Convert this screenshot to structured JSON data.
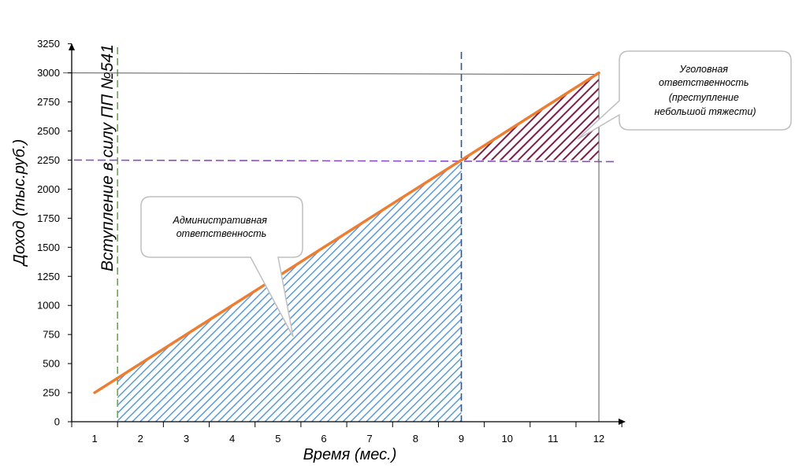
{
  "chart_data": {
    "type": "line",
    "xlabel": "Время (мес.)",
    "ylabel": "Доход (тыс.руб.)",
    "xlim": [
      0.5,
      13
    ],
    "ylim": [
      0,
      3250
    ],
    "x_ticks": [
      1,
      2,
      3,
      4,
      5,
      6,
      7,
      8,
      9,
      10,
      11,
      12
    ],
    "y_ticks": [
      0,
      250,
      500,
      750,
      1000,
      1250,
      1500,
      1750,
      2000,
      2250,
      2500,
      2750,
      3000,
      3250
    ],
    "series": [
      {
        "color": "#ED7D31",
        "x": [
          1,
          12
        ],
        "y": [
          250,
          3000
        ]
      }
    ],
    "reference_lines": {
      "start_month": 1.5,
      "start_label": "Вступление в силу ПП №541",
      "threshold_month": 9,
      "threshold_income": 2250,
      "max_income": 3000,
      "end_month": 12
    },
    "regions": [
      {
        "id": "admin",
        "x_from": 1.5,
        "x_to": 9,
        "color": "#5B9BD5"
      },
      {
        "id": "criminal",
        "x_from": 9,
        "x_to": 12,
        "color": "#7B1F4A"
      }
    ],
    "annotations": {
      "admin": [
        "Административная",
        "ответственность"
      ],
      "criminal": [
        "Уголовная",
        "ответственность",
        "(преступление",
        "небольшой тяжести)"
      ]
    },
    "grid": false,
    "legend": "none"
  }
}
